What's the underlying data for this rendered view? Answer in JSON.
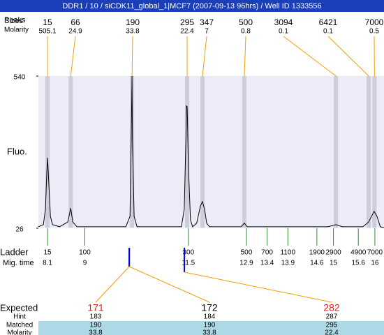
{
  "title": "DDR1 / 10 / siCDK11_global_1|MCF7 (2007-09-13 96hrs) / Well ID 1333556",
  "chart_data": {
    "type": "electropherogram",
    "row_labels": {
      "peaks": "Peaks",
      "sizes": "Sizes",
      "molarity": "Molarity"
    },
    "y_label": "Fluo.",
    "ylim": [
      26,
      540
    ],
    "yticks": [
      26,
      540
    ],
    "xlim": [
      7.88,
      16.22
    ],
    "trace": {
      "color": "#000000",
      "x": [
        7.88,
        8.0,
        8.05,
        8.08,
        8.1,
        8.13,
        8.17,
        8.22,
        8.39,
        8.59,
        8.66,
        8.71,
        8.81,
        9.99,
        10.09,
        10.12,
        10.14,
        10.15,
        10.19,
        10.26,
        11.33,
        11.4,
        11.44,
        11.45,
        11.47,
        11.5,
        11.55,
        11.6,
        11.7,
        11.79,
        11.84,
        11.89,
        11.94,
        12.01,
        12.77,
        12.85,
        12.92,
        13.36,
        14.87,
        15.06,
        15.21,
        15.71,
        15.85,
        15.98,
        16.05,
        16.13,
        16.22
      ],
      "values": [
        31,
        38,
        90,
        208,
        264,
        184,
        66,
        38,
        31,
        47,
        94,
        47,
        31,
        31,
        66,
        325,
        540,
        325,
        66,
        31,
        31,
        90,
        325,
        439,
        436,
        231,
        54,
        31,
        43,
        101,
        116,
        90,
        43,
        31,
        31,
        43,
        31,
        31,
        31,
        38,
        31,
        31,
        47,
        83,
        66,
        31,
        28
      ]
    },
    "peaks": {
      "band_color": "#cdcddc",
      "line_color": "#f0a000",
      "sizes": [
        15,
        66,
        190,
        295,
        347,
        500,
        3094,
        6421,
        7000
      ],
      "molarity": [
        505.1,
        24.9,
        33.8,
        22.4,
        7,
        0.8,
        0.1,
        0.1,
        0.5
      ],
      "x": [
        8.1,
        8.66,
        10.14,
        11.47,
        11.84,
        12.85,
        15.06,
        15.85,
        15.99
      ]
    },
    "ladder": {
      "label": "Ladder",
      "mig_label": "Mig. time",
      "color": "#2e8b2e",
      "sizes": [
        15,
        100,
        300,
        500,
        700,
        1100,
        1900,
        2900,
        4900,
        7000
      ],
      "mig_times": [
        8.1,
        9,
        11.5,
        12.9,
        13.4,
        13.9,
        14.6,
        15,
        15.6,
        16
      ]
    },
    "expected": {
      "label": "Expected",
      "values": [
        171,
        172,
        282
      ],
      "colors": [
        "#e02020",
        "#000000",
        "#e02020"
      ],
      "marker_color": "#0000e0",
      "hint_label": "Hint",
      "hints": [
        183,
        184,
        287
      ],
      "matched_label": "Matched",
      "matched": [
        190,
        190,
        295
      ],
      "molarity_label": "Molarity",
      "molarity": [
        33.8,
        33.8,
        22.4
      ]
    }
  }
}
